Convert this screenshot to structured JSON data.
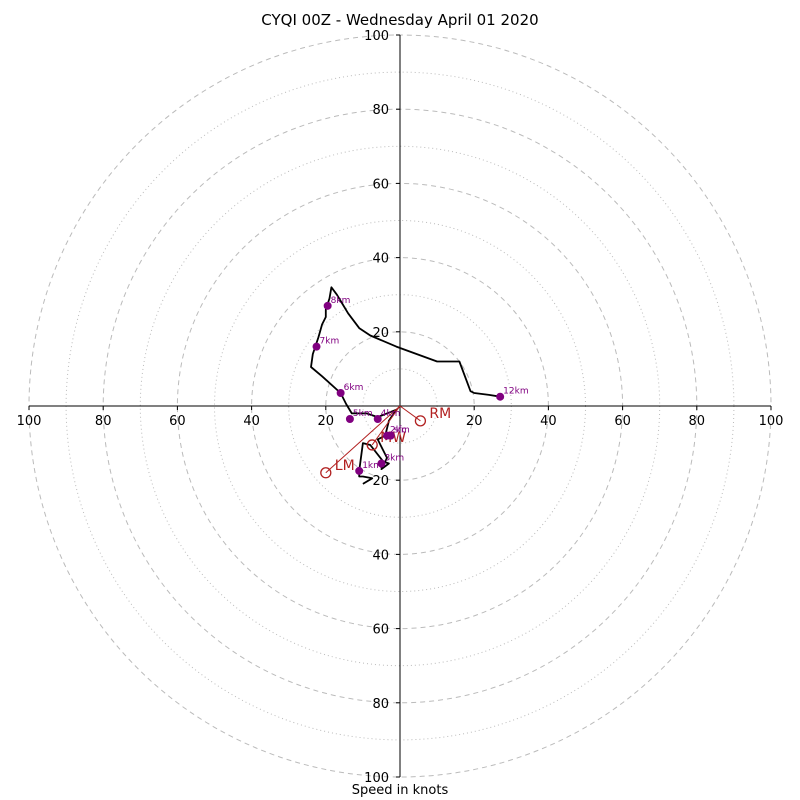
{
  "chart_data": {
    "type": "hodograph",
    "title": "CYQI 00Z - Wednesday April 01 2020",
    "xlabel": "Speed in knots",
    "axis_range": [
      -100,
      100
    ],
    "ring_values_major": [
      20,
      40,
      60,
      80,
      100
    ],
    "ring_values_minor": [
      10,
      30,
      50,
      70,
      90
    ],
    "tick_labels": [
      "100",
      "80",
      "60",
      "40",
      "20",
      "20",
      "40",
      "60",
      "80",
      "100"
    ],
    "y_tick_labels": [
      "100",
      "80",
      "60",
      "40",
      "20",
      "20",
      "40",
      "60",
      "80",
      "100"
    ],
    "grid": true,
    "colors": {
      "trace": "#000000",
      "markers": "#800080",
      "storm_motion": "#b22222",
      "grid": "#bbbbbb"
    },
    "trace": [
      [
        -10,
        -21
      ],
      [
        -7.5,
        -19.5
      ],
      [
        -10,
        -19
      ],
      [
        -11,
        -19
      ],
      [
        -11,
        -17.5
      ],
      [
        -10,
        -10
      ],
      [
        -8,
        -10.5
      ],
      [
        -4.5,
        -15
      ],
      [
        -3,
        -15.5
      ],
      [
        -5,
        -17
      ],
      [
        -3.5,
        -14
      ],
      [
        -6,
        -9
      ],
      [
        -4,
        -8
      ],
      [
        -3,
        -4
      ],
      [
        -2,
        -2.5
      ],
      [
        -1,
        -1
      ],
      [
        -6,
        -3
      ],
      [
        -9,
        -2
      ],
      [
        -11,
        -2
      ],
      [
        -13,
        -2
      ],
      [
        -14.5,
        0.5
      ],
      [
        -16,
        3.5
      ],
      [
        -21,
        8
      ],
      [
        -24,
        10.5
      ],
      [
        -23.5,
        14
      ],
      [
        -22,
        18.5
      ],
      [
        -21,
        22
      ],
      [
        -20,
        24
      ],
      [
        -20,
        26
      ],
      [
        -19,
        29
      ],
      [
        -18.5,
        32
      ],
      [
        -17,
        30
      ],
      [
        -15.5,
        27.5
      ],
      [
        -14,
        25
      ],
      [
        -11,
        21
      ],
      [
        -8,
        19
      ],
      [
        -1,
        16
      ],
      [
        10,
        12
      ],
      [
        16,
        12
      ],
      [
        19,
        4
      ],
      [
        20,
        3.5
      ],
      [
        24,
        3
      ],
      [
        27,
        2.5
      ]
    ],
    "height_markers": [
      {
        "label": "1km",
        "x": -11,
        "y": -17.5
      },
      {
        "label": "2km",
        "x": -3.5,
        "y": -8
      },
      {
        "label": "3km",
        "x": -5,
        "y": -15.5
      },
      {
        "label": "4km",
        "x": -6,
        "y": -3.5
      },
      {
        "label": "5km",
        "x": -13.5,
        "y": -3.5
      },
      {
        "label": "6km",
        "x": -16,
        "y": 3.5
      },
      {
        "label": "7km",
        "x": -22.5,
        "y": 16
      },
      {
        "label": "8km",
        "x": -19.5,
        "y": 27
      },
      {
        "label": "12km",
        "x": 27,
        "y": 2.5
      },
      {
        "label": "sfc",
        "x": -2.5,
        "y": -8
      }
    ],
    "storm_motion": [
      {
        "label": "RM",
        "x": 5.5,
        "y": -4
      },
      {
        "label": "LM",
        "x": -20,
        "y": -18
      },
      {
        "label": "MW",
        "x": -7.5,
        "y": -10.5
      }
    ]
  }
}
